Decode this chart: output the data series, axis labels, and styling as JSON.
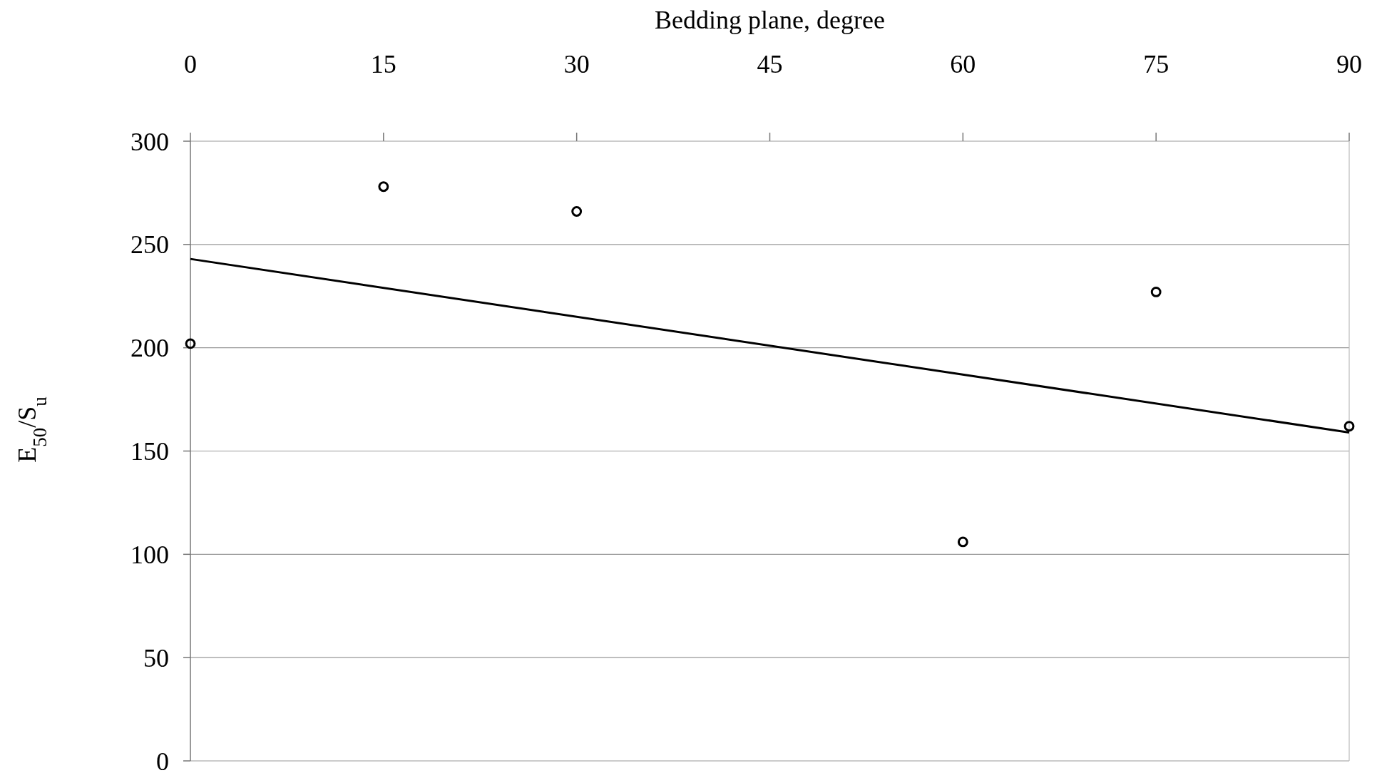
{
  "chart_data": {
    "type": "scatter",
    "xlabel": "Bedding plane, degree",
    "ylabel": "E$_{50}$/S$_{u}$",
    "xlim": [
      0,
      90
    ],
    "xticks": [
      0,
      15,
      30,
      45,
      60,
      75,
      90
    ],
    "ylim": [
      0,
      300
    ],
    "yticks": [
      0,
      50,
      100,
      150,
      200,
      250,
      300
    ],
    "grid": "y",
    "series": [
      {
        "marker": "circle",
        "color": "#000000",
        "x": [
          0,
          15,
          30,
          60,
          75,
          90
        ],
        "values": [
          202,
          278,
          266,
          106,
          227,
          162
        ]
      },
      {
        "type": "line",
        "color": "#000000",
        "x": [
          0,
          90
        ],
        "values": [
          243,
          159
        ],
        "line_style": "solid"
      }
    ]
  }
}
